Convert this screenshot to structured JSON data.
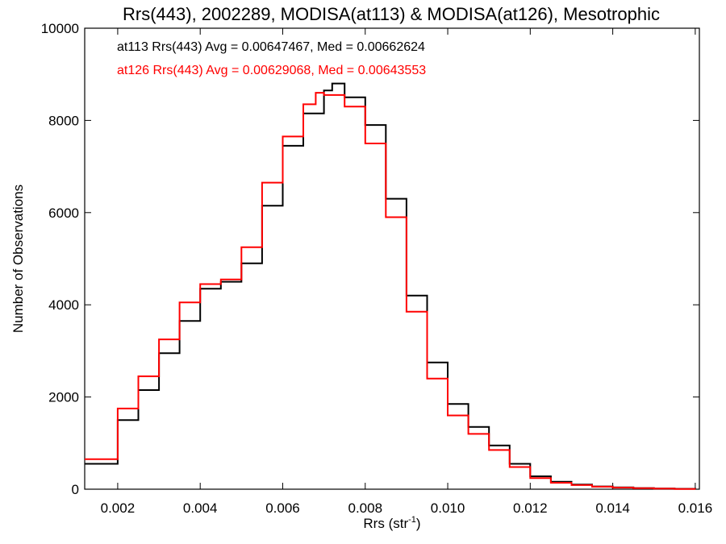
{
  "chart_data": {
    "type": "line",
    "title": "Rrs(443), 2002289, MODISA(at113) & MODISA(at126), Mesotrophic",
    "xlabel_main": "Rrs (str",
    "xlabel_sup": "-1",
    "xlabel_close": ")",
    "ylabel": "Number of Observations",
    "xlim": [
      0.0012,
      0.0161
    ],
    "ylim": [
      0,
      10000
    ],
    "x_ticks": [
      "0.002",
      "0.004",
      "0.006",
      "0.008",
      "0.010",
      "0.012",
      "0.014",
      "0.016"
    ],
    "x_tick_values": [
      0.002,
      0.004,
      0.006,
      0.008,
      0.01,
      0.012,
      0.014,
      0.016
    ],
    "y_ticks": [
      "0",
      "2000",
      "4000",
      "6000",
      "8000",
      "10000"
    ],
    "y_tick_values": [
      0,
      2000,
      4000,
      6000,
      8000,
      10000
    ],
    "grid": false,
    "legend_position": "top-left",
    "series": [
      {
        "name": "at113",
        "color": "#000000",
        "legend_text": "at113 Rrs(443) Avg = 0.00647467, Med = 0.00662624",
        "x": [
          0.0012,
          0.002,
          0.0025,
          0.003,
          0.0035,
          0.004,
          0.0045,
          0.005,
          0.0055,
          0.006,
          0.0065,
          0.007,
          0.0072,
          0.0075,
          0.008,
          0.0085,
          0.009,
          0.0095,
          0.01,
          0.0105,
          0.011,
          0.0115,
          0.012,
          0.0125,
          0.013,
          0.0135,
          0.014,
          0.0145,
          0.015,
          0.0155,
          0.016
        ],
        "y": [
          550,
          1500,
          2150,
          2950,
          3650,
          4350,
          4500,
          4900,
          6150,
          7450,
          8150,
          8650,
          8800,
          8500,
          7900,
          6300,
          4200,
          2750,
          1850,
          1350,
          950,
          550,
          280,
          160,
          100,
          60,
          40,
          25,
          15,
          8,
          5
        ]
      },
      {
        "name": "at126",
        "color": "#ff0000",
        "legend_text": "at126 Rrs(443) Avg = 0.00629068, Med = 0.00643553",
        "x": [
          0.0012,
          0.002,
          0.0025,
          0.003,
          0.0035,
          0.004,
          0.0045,
          0.005,
          0.0055,
          0.006,
          0.0065,
          0.0068,
          0.007,
          0.0075,
          0.008,
          0.0085,
          0.009,
          0.0095,
          0.01,
          0.0105,
          0.011,
          0.0115,
          0.012,
          0.0125,
          0.013,
          0.0135,
          0.014,
          0.0145,
          0.015,
          0.0155,
          0.016
        ],
        "y": [
          650,
          1750,
          2450,
          3250,
          4050,
          4450,
          4550,
          5250,
          6650,
          7650,
          8350,
          8600,
          8550,
          8300,
          7500,
          5900,
          3850,
          2400,
          1600,
          1200,
          850,
          480,
          240,
          140,
          90,
          55,
          35,
          22,
          12,
          6,
          4
        ]
      }
    ]
  }
}
